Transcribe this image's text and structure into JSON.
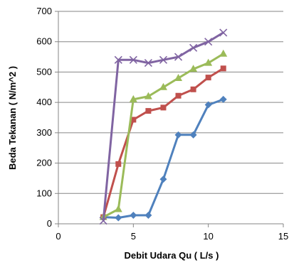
{
  "chart_data": {
    "type": "scatter",
    "title": "",
    "xlabel": "Debit Udara Qu ( L/s )",
    "ylabel": "Beda Tekanan ( N/m^2 )",
    "xlim": [
      0,
      15
    ],
    "ylim": [
      0,
      700
    ],
    "x_ticks": [
      "0",
      "5",
      "10",
      "15"
    ],
    "y_ticks": [
      "0",
      "100",
      "200",
      "300",
      "400",
      "500",
      "600",
      "700"
    ],
    "grid": "horizontal",
    "legend": "none",
    "series": [
      {
        "color": "#4F81BD",
        "marker": "diamond",
        "x": [
          3,
          4,
          5,
          6,
          7,
          8,
          9,
          10,
          11
        ],
        "y": [
          22,
          20,
          28,
          28,
          147,
          293,
          293,
          392,
          410
        ]
      },
      {
        "color": "#C0504D",
        "marker": "square",
        "x": [
          3,
          4,
          5,
          6,
          7,
          8,
          9,
          10,
          11
        ],
        "y": [
          22,
          197,
          343,
          372,
          383,
          422,
          443,
          482,
          512
        ]
      },
      {
        "color": "#9BBB59",
        "marker": "triangle",
        "x": [
          3,
          4,
          5,
          6,
          7,
          8,
          9,
          10,
          11
        ],
        "y": [
          22,
          48,
          410,
          420,
          450,
          480,
          510,
          530,
          560
        ]
      },
      {
        "color": "#8064A2",
        "marker": "x",
        "x": [
          3,
          4,
          5,
          6,
          7,
          8,
          9,
          10,
          11
        ],
        "y": [
          10,
          540,
          540,
          530,
          540,
          550,
          580,
          600,
          630
        ]
      }
    ]
  }
}
